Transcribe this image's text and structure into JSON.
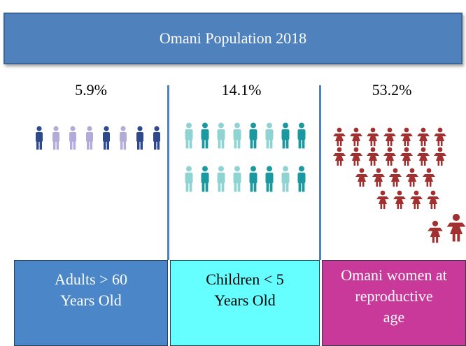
{
  "title": "Omani Population 2018",
  "groups": [
    {
      "percent": "5.9%",
      "label": [
        "Adults > 60",
        "Years Old"
      ]
    },
    {
      "percent": "14.1%",
      "label": [
        "Children < 5",
        "Years Old"
      ]
    },
    {
      "percent": "53.2%",
      "label": [
        "Omani women at",
        "reproductive",
        "age"
      ]
    }
  ]
}
